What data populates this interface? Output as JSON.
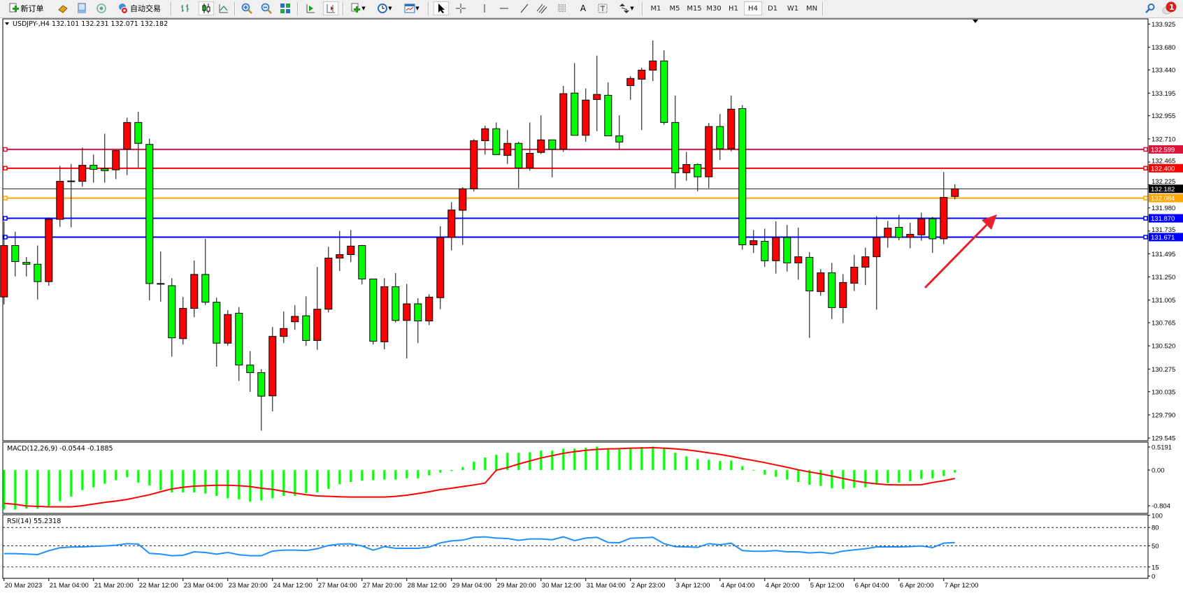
{
  "toolbar": {
    "new_order_label": "新订单",
    "autotrade_label": "自动交易",
    "timeframes": [
      "M1",
      "M5",
      "M15",
      "M30",
      "H1",
      "H4",
      "D1",
      "W1",
      "MN"
    ],
    "active_timeframe": "H4",
    "text_tool_label": "A",
    "notification_count": "1"
  },
  "chart": {
    "title": "USDJPY-,H4  132.101 132.231 132.071 132.182",
    "up_color": "#FF0000",
    "down_color": "#00FF00",
    "price_ticks": [
      "133.925",
      "133.680",
      "133.440",
      "133.195",
      "132.955",
      "132.710",
      "132.465",
      "132.225",
      "131.980",
      "131.735",
      "131.495",
      "131.250",
      "131.005",
      "130.765",
      "130.520",
      "130.275",
      "130.035",
      "129.790",
      "129.545"
    ],
    "bid": {
      "value": "132.182",
      "color": "#000000"
    },
    "hlines": [
      {
        "value": "132.599",
        "color": "#DC143C"
      },
      {
        "value": "132.400",
        "color": "#FF0000"
      },
      {
        "value": "132.084",
        "color": "#FFA500"
      },
      {
        "value": "131.870",
        "color": "#0000FF"
      },
      {
        "value": "131.671",
        "color": "#0000FF"
      }
    ],
    "arrow_color": "#E8202A"
  },
  "macd": {
    "title": "MACD(12,26,9) -0.0544 -0.1885",
    "ticks": [
      "0.5191",
      "0.00",
      "-0.804"
    ],
    "hist_color": "#00FF00",
    "signal_color": "#FF0000"
  },
  "rsi": {
    "title": "RSI(14) 55.2318",
    "ticks": [
      "100",
      "80",
      "50",
      "15",
      "0"
    ],
    "levels": [
      80,
      50,
      15
    ],
    "line_color": "#1E90FF"
  },
  "time_labels": [
    "20 Mar 2023",
    "21 Mar 04:00",
    "21 Mar 20:00",
    "22 Mar 12:00",
    "23 Mar 04:00",
    "23 Mar 20:00",
    "24 Mar 12:00",
    "27 Mar 04:00",
    "27 Mar 20:00",
    "28 Mar 12:00",
    "29 Mar 04:00",
    "29 Mar 20:00",
    "30 Mar 12:00",
    "31 Mar 04:00",
    "2 Apr 23:00",
    "3 Apr 12:00",
    "4 Apr 04:00",
    "4 Apr 20:00",
    "5 Apr 12:00",
    "6 Apr 04:00",
    "6 Apr 20:00",
    "7 Apr 12:00"
  ],
  "chart_data": {
    "type": "candlestick",
    "symbol": "USDJPY-",
    "timeframe": "H4",
    "ylim": [
      129.545,
      133.925
    ],
    "ohlc": [
      [
        131.038,
        131.837,
        130.959,
        131.582
      ],
      [
        131.582,
        131.729,
        131.256,
        131.412
      ],
      [
        131.404,
        131.46,
        131.256,
        131.384
      ],
      [
        131.384,
        131.582,
        131.01,
        131.2
      ],
      [
        131.2,
        131.879,
        131.157,
        131.859
      ],
      [
        131.859,
        132.425,
        131.78,
        132.261
      ],
      [
        132.261,
        132.445,
        131.774,
        132.265
      ],
      [
        132.261,
        132.618,
        132.204,
        132.431
      ],
      [
        132.431,
        132.544,
        132.247,
        132.388
      ],
      [
        132.394,
        132.765,
        132.247,
        132.374
      ],
      [
        132.383,
        132.59,
        132.284,
        132.586
      ],
      [
        132.601,
        132.935,
        132.326,
        132.884
      ],
      [
        132.884,
        132.997,
        132.408,
        132.663
      ],
      [
        132.652,
        132.714,
        131.002,
        131.18
      ],
      [
        131.18,
        131.52,
        130.988,
        131.175
      ],
      [
        131.157,
        131.237,
        130.407,
        130.605
      ],
      [
        130.597,
        131.038,
        130.535,
        130.917
      ],
      [
        130.917,
        131.423,
        130.823,
        131.276
      ],
      [
        131.276,
        131.653,
        130.953,
        130.982
      ],
      [
        130.982,
        131.03,
        130.3,
        130.549
      ],
      [
        130.549,
        130.897,
        130.521,
        130.852
      ],
      [
        130.866,
        130.931,
        130.147,
        130.317
      ],
      [
        130.317,
        130.464,
        130.034,
        130.237
      ],
      [
        130.237,
        130.274,
        129.623,
        129.988
      ],
      [
        129.991,
        130.719,
        129.827,
        130.62
      ],
      [
        130.62,
        130.883,
        130.549,
        130.704
      ],
      [
        130.775,
        130.951,
        130.69,
        130.832
      ],
      [
        130.838,
        131.044,
        130.521,
        130.577
      ],
      [
        130.577,
        131.355,
        130.478,
        130.908
      ],
      [
        130.908,
        131.568,
        130.874,
        131.449
      ],
      [
        131.449,
        131.737,
        131.313,
        131.486
      ],
      [
        131.486,
        131.746,
        131.406,
        131.576
      ],
      [
        131.582,
        131.59,
        131.171,
        131.228
      ],
      [
        131.228,
        131.228,
        130.535,
        130.569
      ],
      [
        130.563,
        131.237,
        130.484,
        131.146
      ],
      [
        131.146,
        131.29,
        130.767,
        130.789
      ],
      [
        130.789,
        131.177,
        130.388,
        130.965
      ],
      [
        130.965,
        131.024,
        130.549,
        130.784
      ],
      [
        130.784,
        131.067,
        130.741,
        131.036
      ],
      [
        131.03,
        131.786,
        130.908,
        131.667
      ],
      [
        131.667,
        132.04,
        131.531,
        131.958
      ],
      [
        131.955,
        132.199,
        131.588,
        132.182
      ],
      [
        132.182,
        132.708,
        132.154,
        132.691
      ],
      [
        132.691,
        132.85,
        132.544,
        132.818
      ],
      [
        132.818,
        132.884,
        132.544,
        132.544
      ],
      [
        132.536,
        132.804,
        132.445,
        132.663
      ],
      [
        132.663,
        132.68,
        132.19,
        132.403
      ],
      [
        132.403,
        132.884,
        132.374,
        132.558
      ],
      [
        132.567,
        132.96,
        132.55,
        132.7
      ],
      [
        132.7,
        132.7,
        132.303,
        132.601
      ],
      [
        132.601,
        133.271,
        132.572,
        133.189
      ],
      [
        133.195,
        133.512,
        132.748,
        132.748
      ],
      [
        132.748,
        133.243,
        132.68,
        133.121
      ],
      [
        133.127,
        133.591,
        132.793,
        133.181
      ],
      [
        133.172,
        133.308,
        132.742,
        132.742
      ],
      [
        132.742,
        132.96,
        132.6,
        132.677
      ],
      [
        133.274,
        133.373,
        133.124,
        133.35
      ],
      [
        133.342,
        133.464,
        132.804,
        133.438
      ],
      [
        133.438,
        133.752,
        133.322,
        133.535
      ],
      [
        133.535,
        133.648,
        132.861,
        132.884
      ],
      [
        132.884,
        133.167,
        132.19,
        132.352
      ],
      [
        132.352,
        132.572,
        132.267,
        132.439
      ],
      [
        132.439,
        132.453,
        132.156,
        132.309
      ],
      [
        132.309,
        132.878,
        132.19,
        132.841
      ],
      [
        132.841,
        132.974,
        132.487,
        132.606
      ],
      [
        132.606,
        133.167,
        132.578,
        133.025
      ],
      [
        133.031,
        133.068,
        131.539,
        131.59
      ],
      [
        131.59,
        131.746,
        131.503,
        131.633
      ],
      [
        131.627,
        131.76,
        131.355,
        131.421
      ],
      [
        131.421,
        131.837,
        131.285,
        131.667
      ],
      [
        131.667,
        131.8,
        131.307,
        131.398
      ],
      [
        131.398,
        131.771,
        131.22,
        131.463
      ],
      [
        131.457,
        131.511,
        130.606,
        131.101
      ],
      [
        131.095,
        131.333,
        131.05,
        131.293
      ],
      [
        131.293,
        131.398,
        130.803,
        130.925
      ],
      [
        130.925,
        131.279,
        130.761,
        131.191
      ],
      [
        131.183,
        131.483,
        131.101,
        131.353
      ],
      [
        131.353,
        131.559,
        131.163,
        131.463
      ],
      [
        131.463,
        131.893,
        130.903,
        131.667
      ],
      [
        131.667,
        131.842,
        131.559,
        131.766
      ],
      [
        131.774,
        131.907,
        131.638,
        131.667
      ],
      [
        131.667,
        131.822,
        131.553,
        131.701
      ],
      [
        131.695,
        131.93,
        131.633,
        131.865
      ],
      [
        131.865,
        131.885,
        131.505,
        131.653
      ],
      [
        131.653,
        132.36,
        131.596,
        132.091
      ],
      [
        132.101,
        132.231,
        132.071,
        132.182
      ]
    ],
    "macd_main": [
      -0.886,
      -0.886,
      -0.87,
      -0.87,
      -0.817,
      -0.702,
      -0.597,
      -0.45,
      -0.388,
      -0.309,
      -0.225,
      -0.162,
      -0.283,
      -0.346,
      -0.45,
      -0.503,
      -0.503,
      -0.503,
      -0.529,
      -0.581,
      -0.634,
      -0.66,
      -0.712,
      -0.686,
      -0.634,
      -0.581,
      -0.581,
      -0.519,
      -0.503,
      -0.424,
      -0.32,
      -0.267,
      -0.241,
      -0.225,
      -0.215,
      -0.215,
      -0.189,
      -0.189,
      -0.12,
      -0.058,
      -0.02,
      0.068,
      0.189,
      0.283,
      0.346,
      0.388,
      0.388,
      0.403,
      0.44,
      0.44,
      0.482,
      0.482,
      0.503,
      0.529,
      0.493,
      0.466,
      0.482,
      0.519,
      0.529,
      0.503,
      0.388,
      0.309,
      0.246,
      0.23,
      0.204,
      0.215,
      0.089,
      0.005,
      -0.105,
      -0.152,
      -0.215,
      -0.267,
      -0.33,
      -0.356,
      -0.409,
      -0.424,
      -0.398,
      -0.388,
      -0.33,
      -0.293,
      -0.283,
      -0.251,
      -0.199,
      -0.189,
      -0.136,
      -0.0544
    ],
    "macd_signal": [
      -0.749,
      -0.77,
      -0.807,
      -0.817,
      -0.828,
      -0.828,
      -0.828,
      -0.802,
      -0.765,
      -0.728,
      -0.697,
      -0.66,
      -0.608,
      -0.555,
      -0.487,
      -0.424,
      -0.388,
      -0.361,
      -0.351,
      -0.341,
      -0.341,
      -0.351,
      -0.372,
      -0.409,
      -0.435,
      -0.477,
      -0.519,
      -0.555,
      -0.581,
      -0.592,
      -0.602,
      -0.608,
      -0.608,
      -0.608,
      -0.608,
      -0.592,
      -0.566,
      -0.529,
      -0.487,
      -0.44,
      -0.409,
      -0.372,
      -0.335,
      -0.293,
      -0.005,
      0.058,
      0.136,
      0.204,
      0.272,
      0.325,
      0.377,
      0.414,
      0.445,
      0.466,
      0.477,
      0.482,
      0.493,
      0.498,
      0.503,
      0.493,
      0.477,
      0.456,
      0.424,
      0.388,
      0.351,
      0.309,
      0.257,
      0.215,
      0.168,
      0.115,
      0.063,
      0.005,
      -0.042,
      -0.084,
      -0.136,
      -0.189,
      -0.241,
      -0.283,
      -0.309,
      -0.33,
      -0.335,
      -0.335,
      -0.33,
      -0.28,
      -0.24,
      -0.1885
    ],
    "rsi": [
      37.0,
      37.0,
      36.2,
      35.4,
      41.8,
      46.6,
      47.7,
      48.1,
      48.9,
      49.6,
      50.8,
      53.4,
      52.7,
      37.4,
      36.2,
      33.5,
      34.3,
      40.0,
      38.9,
      36.2,
      38.9,
      35.1,
      33.5,
      33.5,
      41.2,
      42.7,
      42.7,
      42.0,
      45.0,
      50.4,
      52.7,
      53.1,
      49.6,
      42.7,
      48.5,
      45.8,
      45.8,
      45.8,
      47.7,
      54.6,
      58.0,
      59.2,
      63.8,
      64.6,
      62.6,
      61.9,
      58.8,
      61.1,
      61.1,
      59.9,
      64.6,
      58.4,
      62.6,
      63.8,
      55.4,
      55.0,
      62.3,
      63.0,
      63.8,
      53.4,
      48.5,
      48.1,
      47.3,
      53.4,
      51.5,
      54.2,
      42.0,
      40.8,
      40.8,
      42.0,
      40.0,
      40.0,
      38.1,
      39.3,
      37.0,
      41.2,
      43.1,
      45.0,
      48.1,
      48.1,
      48.1,
      48.5,
      49.6,
      46.9,
      54.2,
      55.2318
    ]
  }
}
